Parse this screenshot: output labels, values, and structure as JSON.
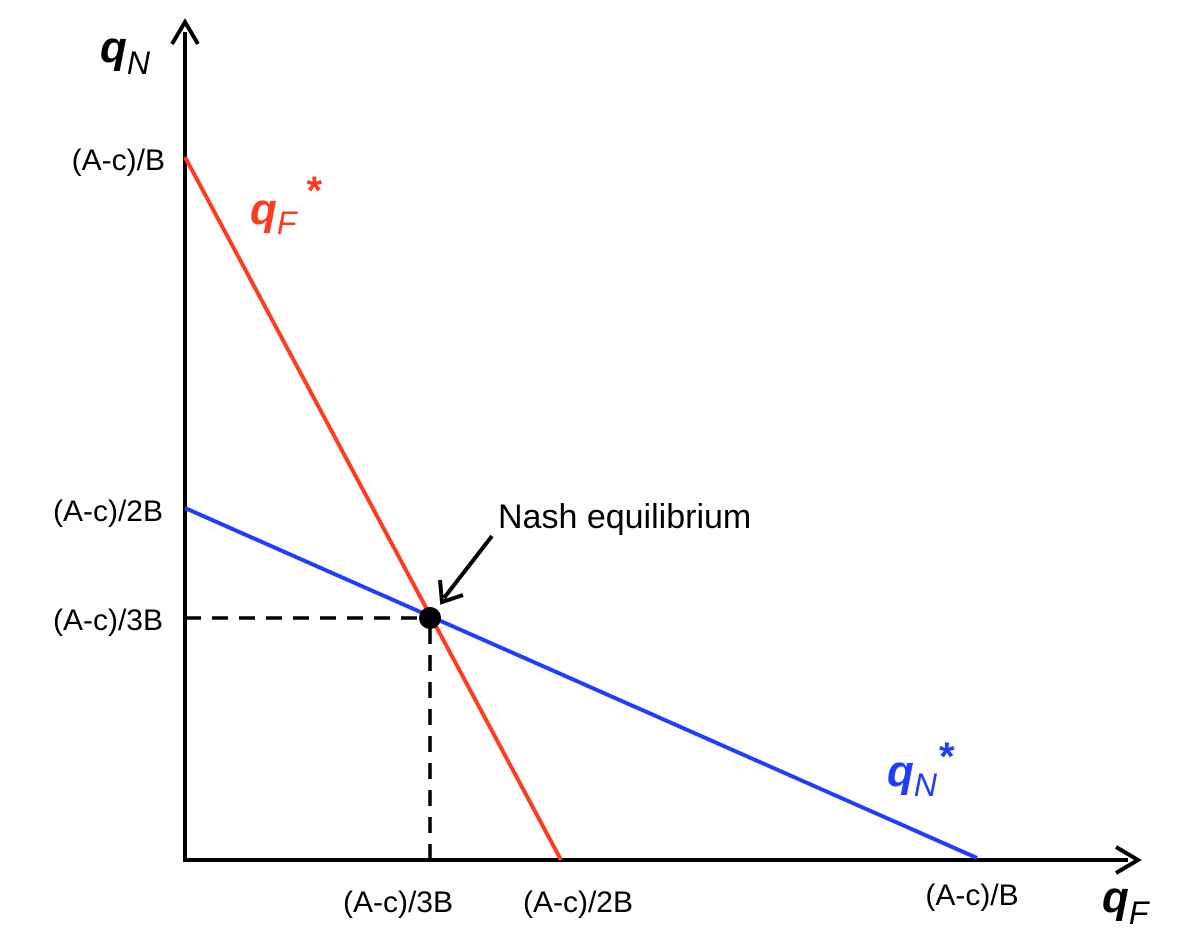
{
  "axes": {
    "y_label_main": "q",
    "y_label_sub": "N",
    "x_label_main": "q",
    "x_label_sub": "F"
  },
  "y_ticks": {
    "top": "(A-c)/B",
    "middle": "(A-c)/2B",
    "lower": "(A-c)/3B"
  },
  "x_ticks": {
    "first": "(A-c)/3B",
    "second": "(A-c)/2B",
    "third": "(A-c)/B"
  },
  "curves": {
    "firm_f": {
      "label_main": "q",
      "label_sub": "F",
      "label_star": "*",
      "color": "#ff3b1f"
    },
    "firm_n": {
      "label_main": "q",
      "label_sub": "N",
      "label_star": "*",
      "color": "#1f3dff"
    }
  },
  "equilibrium": {
    "label": "Nash equilibrium"
  }
}
